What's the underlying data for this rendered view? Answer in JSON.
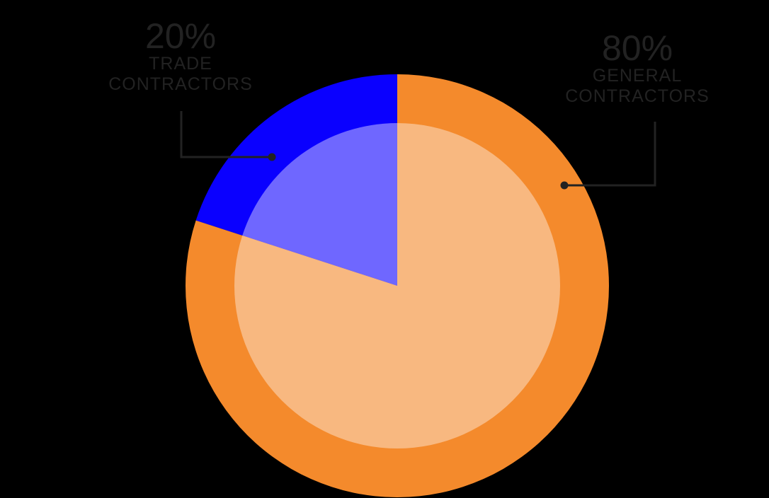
{
  "chart_data": {
    "type": "pie",
    "title": "",
    "categories": [
      "Trade Contractors",
      "General Contractors"
    ],
    "values": [
      20,
      80
    ],
    "unit": "%",
    "labels": [
      {
        "percent": "20%",
        "line1": "TRADE",
        "line2": "CONTRACTORS"
      },
      {
        "percent": "80%",
        "line1": "GENERAL",
        "line2": "CONTRACTORS"
      }
    ],
    "colors": {
      "trade_outer": "#0a00ff",
      "trade_inner": "#6f67ff",
      "general_outer": "#f48a2c",
      "general_inner": "#f8b880",
      "label_text": "#222222",
      "background": "#000000"
    },
    "legend": "callout labels with leader lines"
  },
  "labels": {
    "trade": {
      "percent": "20%",
      "line1": "TRADE",
      "line2": "CONTRACTORS"
    },
    "general": {
      "percent": "80%",
      "line1": "GENERAL",
      "line2": "CONTRACTORS"
    }
  }
}
